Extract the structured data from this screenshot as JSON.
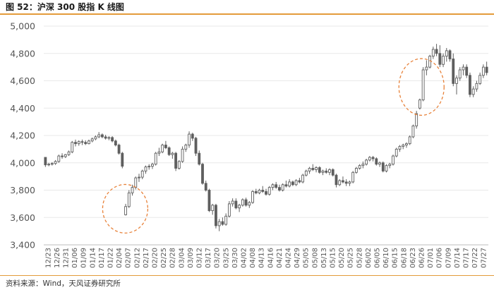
{
  "title": "图 52：沪深 300 股指 K 线图",
  "source": "资料来源：Wind，天风证券研究所",
  "colors": {
    "candle": "#5f5f5f",
    "circle": "#e8823a",
    "accent": "#e39b3a",
    "grid": "#e8e8e8"
  },
  "chart_data": {
    "type": "candlestick",
    "title": "",
    "xlabel": "",
    "ylabel": "",
    "ylim": [
      3400,
      5000
    ],
    "yticks": [
      "3,400",
      "3,600",
      "3,800",
      "4,000",
      "4,200",
      "4,400",
      "4,600",
      "4,800",
      "5,000"
    ],
    "grid": "horizontal",
    "legend": "none",
    "xticks": [
      "12/23",
      "12/26",
      "12/31",
      "01/06",
      "01/09",
      "01/14",
      "01/17",
      "01/22",
      "02/04",
      "02/07",
      "02/12",
      "02/17",
      "02/20",
      "02/25",
      "02/28",
      "03/04",
      "03/09",
      "03/12",
      "03/17",
      "03/20",
      "03/25",
      "03/30",
      "04/02",
      "04/08",
      "04/13",
      "04/16",
      "04/21",
      "04/24",
      "04/29",
      "05/05",
      "05/08",
      "05/13",
      "05/15",
      "05/20",
      "05/25",
      "05/28",
      "06/02",
      "06/05",
      "06/10",
      "06/15",
      "06/18",
      "06/23",
      "06/26",
      "07/01",
      "07/06",
      "07/09",
      "07/14",
      "07/17",
      "07/22",
      "07/27"
    ],
    "ohlc": [
      [
        4040,
        4025,
        3970,
        3985
      ],
      [
        3985,
        4000,
        3975,
        3990
      ],
      [
        3990,
        4005,
        3980,
        3995
      ],
      [
        3995,
        4020,
        3985,
        4010
      ],
      [
        4010,
        4060,
        4000,
        4050
      ],
      [
        4050,
        4070,
        4030,
        4045
      ],
      [
        4045,
        4065,
        4035,
        4060
      ],
      [
        4060,
        4090,
        4050,
        4080
      ],
      [
        4080,
        4160,
        4070,
        4150
      ],
      [
        4150,
        4170,
        4120,
        4140
      ],
      [
        4140,
        4165,
        4125,
        4155
      ],
      [
        4155,
        4170,
        4130,
        4150
      ],
      [
        4150,
        4165,
        4130,
        4140
      ],
      [
        4140,
        4170,
        4135,
        4160
      ],
      [
        4160,
        4185,
        4150,
        4175
      ],
      [
        4175,
        4200,
        4165,
        4190
      ],
      [
        4190,
        4225,
        4180,
        4205
      ],
      [
        4205,
        4215,
        4180,
        4190
      ],
      [
        4190,
        4205,
        4170,
        4180
      ],
      [
        4180,
        4195,
        4165,
        4185
      ],
      [
        4185,
        4195,
        4150,
        4160
      ],
      [
        4160,
        4170,
        4120,
        4130
      ],
      [
        4130,
        4140,
        4060,
        4070
      ],
      [
        4070,
        4080,
        3960,
        3975
      ],
      [
        3620,
        3700,
        3615,
        3680
      ],
      [
        3680,
        3800,
        3670,
        3780
      ],
      [
        3780,
        3840,
        3760,
        3820
      ],
      [
        3820,
        3900,
        3805,
        3890
      ],
      [
        3890,
        3920,
        3860,
        3895
      ],
      [
        3895,
        3950,
        3880,
        3940
      ],
      [
        3940,
        3980,
        3920,
        3970
      ],
      [
        3970,
        3990,
        3950,
        3975
      ],
      [
        3975,
        4000,
        3955,
        3990
      ],
      [
        3990,
        4080,
        3980,
        4070
      ],
      [
        4070,
        4110,
        4050,
        4080
      ],
      [
        4080,
        4140,
        4070,
        4130
      ],
      [
        4130,
        4160,
        4100,
        4110
      ],
      [
        4110,
        4120,
        4050,
        4060
      ],
      [
        4060,
        4080,
        4030,
        4070
      ],
      [
        4070,
        4080,
        3940,
        3960
      ],
      [
        3960,
        4020,
        3950,
        4010
      ],
      [
        4010,
        4120,
        4000,
        4100
      ],
      [
        4100,
        4140,
        4080,
        4130
      ],
      [
        4130,
        4230,
        4110,
        4210
      ],
      [
        4210,
        4220,
        4160,
        4180
      ],
      [
        4180,
        4190,
        4050,
        4070
      ],
      [
        4070,
        4090,
        3980,
        3990
      ],
      [
        3990,
        4000,
        3840,
        3850
      ],
      [
        3850,
        3870,
        3790,
        3800
      ],
      [
        3800,
        3810,
        3640,
        3650
      ],
      [
        3650,
        3700,
        3620,
        3690
      ],
      [
        3690,
        3700,
        3520,
        3540
      ],
      [
        3540,
        3590,
        3500,
        3570
      ],
      [
        3570,
        3600,
        3540,
        3550
      ],
      [
        3550,
        3630,
        3540,
        3610
      ],
      [
        3610,
        3720,
        3600,
        3700
      ],
      [
        3700,
        3740,
        3680,
        3720
      ],
      [
        3720,
        3740,
        3660,
        3670
      ],
      [
        3670,
        3700,
        3640,
        3690
      ],
      [
        3690,
        3740,
        3680,
        3730
      ],
      [
        3730,
        3745,
        3680,
        3690
      ],
      [
        3690,
        3720,
        3670,
        3710
      ],
      [
        3710,
        3800,
        3700,
        3790
      ],
      [
        3790,
        3810,
        3770,
        3780
      ],
      [
        3780,
        3810,
        3770,
        3800
      ],
      [
        3800,
        3830,
        3780,
        3790
      ],
      [
        3790,
        3810,
        3760,
        3770
      ],
      [
        3770,
        3830,
        3760,
        3820
      ],
      [
        3820,
        3850,
        3800,
        3840
      ],
      [
        3840,
        3860,
        3810,
        3820
      ],
      [
        3820,
        3840,
        3790,
        3800
      ],
      [
        3800,
        3850,
        3790,
        3840
      ],
      [
        3840,
        3870,
        3820,
        3830
      ],
      [
        3830,
        3880,
        3820,
        3860
      ],
      [
        3860,
        3870,
        3830,
        3840
      ],
      [
        3840,
        3880,
        3830,
        3870
      ],
      [
        3870,
        3890,
        3850,
        3860
      ],
      [
        3860,
        3920,
        3850,
        3910
      ],
      [
        3910,
        3950,
        3900,
        3940
      ],
      [
        3940,
        3970,
        3920,
        3960
      ],
      [
        3960,
        3990,
        3940,
        3950
      ],
      [
        3950,
        3975,
        3930,
        3965
      ],
      [
        3965,
        3975,
        3920,
        3930
      ],
      [
        3930,
        3950,
        3910,
        3940
      ],
      [
        3940,
        3960,
        3920,
        3930
      ],
      [
        3930,
        3960,
        3910,
        3950
      ],
      [
        3950,
        3960,
        3900,
        3910
      ],
      [
        3910,
        3920,
        3820,
        3840
      ],
      [
        3840,
        3880,
        3830,
        3870
      ],
      [
        3870,
        3900,
        3850,
        3860
      ],
      [
        3860,
        3880,
        3830,
        3850
      ],
      [
        3850,
        3870,
        3830,
        3860
      ],
      [
        3860,
        3940,
        3850,
        3930
      ],
      [
        3930,
        3970,
        3920,
        3960
      ],
      [
        3960,
        3990,
        3950,
        3980
      ],
      [
        3980,
        4010,
        3960,
        3990
      ],
      [
        3990,
        4030,
        3980,
        4020
      ],
      [
        4020,
        4050,
        4010,
        4040
      ],
      [
        4040,
        4050,
        4010,
        4030
      ],
      [
        4030,
        4040,
        3980,
        3990
      ],
      [
        3990,
        4010,
        3970,
        4000
      ],
      [
        4000,
        4010,
        3930,
        3940
      ],
      [
        3940,
        3990,
        3930,
        3980
      ],
      [
        3980,
        4000,
        3960,
        3990
      ],
      [
        3990,
        4060,
        3980,
        4050
      ],
      [
        4050,
        4110,
        4040,
        4100
      ],
      [
        4100,
        4130,
        4080,
        4120
      ],
      [
        4120,
        4140,
        4100,
        4130
      ],
      [
        4130,
        4150,
        4110,
        4140
      ],
      [
        4140,
        4200,
        4130,
        4190
      ],
      [
        4190,
        4280,
        4180,
        4270
      ],
      [
        4270,
        4380,
        4250,
        4360
      ],
      [
        4400,
        4470,
        4390,
        4460
      ],
      [
        4460,
        4700,
        4450,
        4680
      ],
      [
        4680,
        4750,
        4640,
        4700
      ],
      [
        4700,
        4790,
        4690,
        4780
      ],
      [
        4780,
        4850,
        4760,
        4830
      ],
      [
        4830,
        4870,
        4780,
        4800
      ],
      [
        4800,
        4860,
        4700,
        4720
      ],
      [
        4720,
        4800,
        4700,
        4780
      ],
      [
        4780,
        4840,
        4740,
        4820
      ],
      [
        4820,
        4830,
        4740,
        4760
      ],
      [
        4760,
        4800,
        4560,
        4580
      ],
      [
        4580,
        4640,
        4500,
        4620
      ],
      [
        4620,
        4700,
        4600,
        4680
      ],
      [
        4680,
        4720,
        4640,
        4700
      ],
      [
        4700,
        4720,
        4620,
        4640
      ],
      [
        4640,
        4660,
        4480,
        4500
      ],
      [
        4500,
        4560,
        4480,
        4540
      ],
      [
        4540,
        4600,
        4520,
        4580
      ],
      [
        4580,
        4660,
        4570,
        4640
      ],
      [
        4640,
        4720,
        4620,
        4700
      ],
      [
        4700,
        4740,
        4640,
        4660
      ]
    ],
    "annotations": [
      "dashed-circle around Feb gap-down low",
      "dashed-circle around early Jul breakout"
    ]
  }
}
